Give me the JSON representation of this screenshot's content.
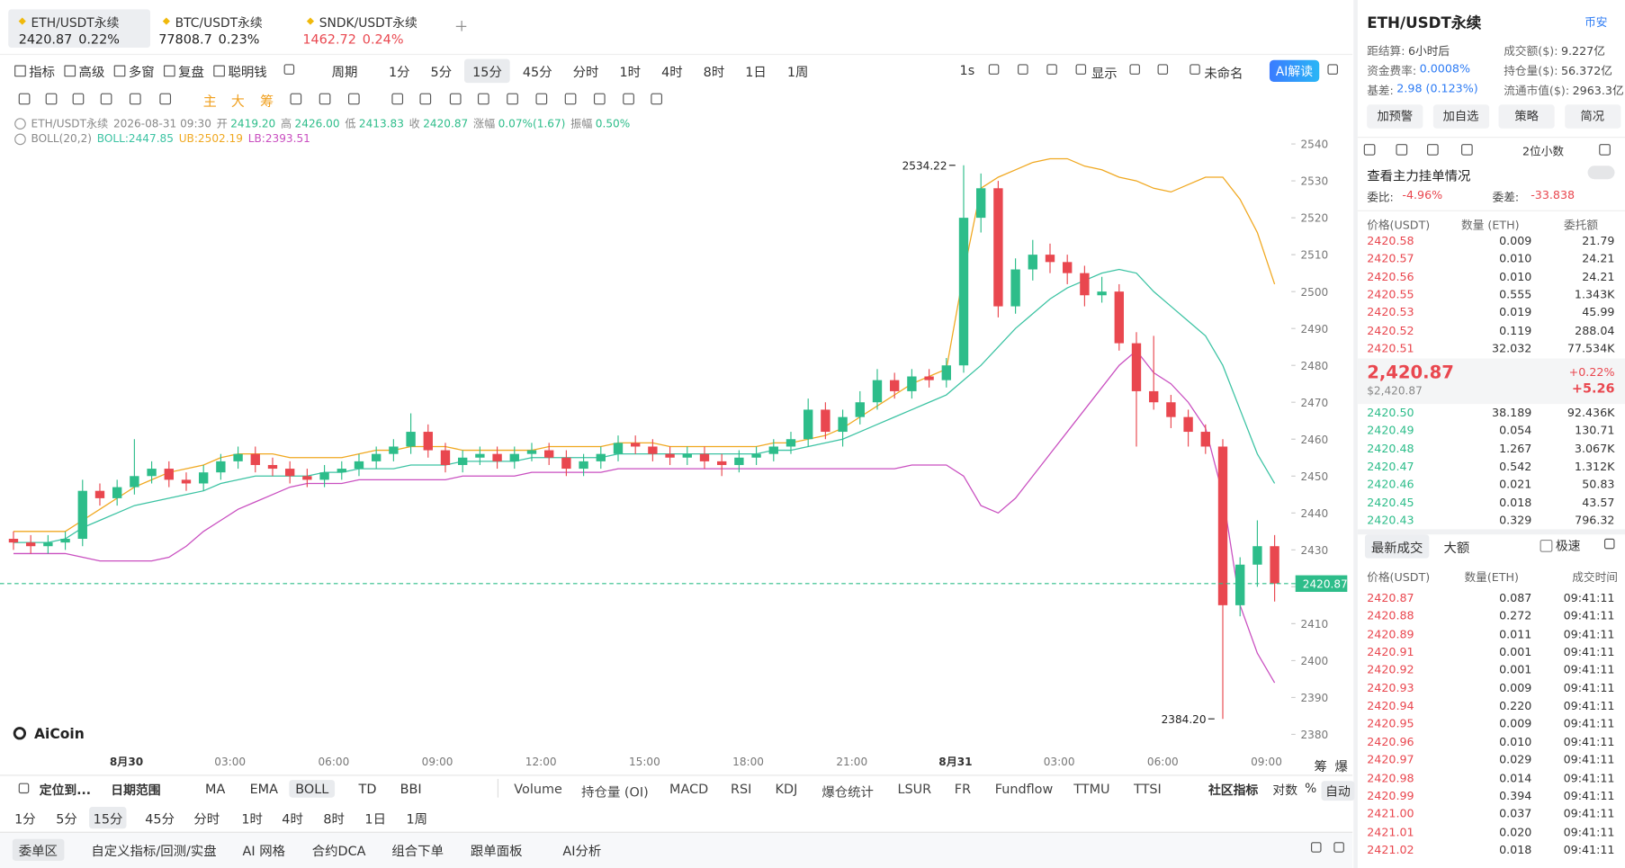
{
  "tabs": [
    {
      "name": "ETH/USDT永续",
      "price": "2420.87",
      "change": "0.22%",
      "color": "#222"
    },
    {
      "name": "BTC/USDT永续",
      "price": "77808.7",
      "change": "0.23%",
      "color": "#222"
    },
    {
      "name": "SNDK/USDT永续",
      "price": "1462.72",
      "change": "0.24%",
      "color": "#e9474f"
    }
  ],
  "toolbar": {
    "tools": [
      "指标",
      "高级",
      "多窗",
      "复盘",
      "聪明钱"
    ],
    "periods": [
      "周期",
      "1分",
      "5分",
      "15分",
      "45分",
      "分时",
      "1时",
      "4时",
      "8时",
      "1日",
      "1周"
    ],
    "right": [
      "1s",
      "显示",
      "未命名"
    ],
    "ai": "AI解读"
  },
  "drawing_tools": [
    "主",
    "大",
    "筹"
  ],
  "info": {
    "symbol": "ETH/USDT永续",
    "time": "2026-08-31 09:30",
    "fields": [
      [
        "开",
        "2419.20"
      ],
      [
        "高",
        "2426.00"
      ],
      [
        "低",
        "2413.83"
      ],
      [
        "收",
        "2420.87"
      ],
      [
        "涨幅",
        "0.07%(1.67)"
      ],
      [
        "振幅",
        "0.50%"
      ]
    ]
  },
  "boll_info": {
    "name": "BOLL(20,2)",
    "mid": "BOLL:2447.85",
    "ub": "UB:2502.19",
    "lb": "LB:2393.51"
  },
  "chart_data": {
    "type": "candlestick",
    "ylim": [
      2380,
      2540
    ],
    "yticks": [
      2380,
      2390,
      2400,
      2410,
      2420,
      2430,
      2440,
      2450,
      2460,
      2470,
      2480,
      2490,
      2500,
      2510,
      2520,
      2530,
      2540
    ],
    "grid": false,
    "x_labels": [
      "8月30",
      "03:00",
      "06:00",
      "09:00",
      "12:00",
      "15:00",
      "18:00",
      "21:00",
      "8月31",
      "03:00",
      "06:00",
      "09:00"
    ],
    "up_color": "#2dbd8a",
    "down_color": "#e9474f",
    "candles": [
      [
        2433,
        2435,
        2430,
        2432
      ],
      [
        2432,
        2434,
        2429,
        2431
      ],
      [
        2431,
        2434,
        2429,
        2432
      ],
      [
        2432,
        2435,
        2430,
        2433
      ],
      [
        2433,
        2449,
        2431,
        2446
      ],
      [
        2446,
        2448,
        2442,
        2444
      ],
      [
        2444,
        2449,
        2442,
        2447
      ],
      [
        2447,
        2460,
        2445,
        2450
      ],
      [
        2450,
        2454,
        2448,
        2452
      ],
      [
        2452,
        2454,
        2447,
        2449
      ],
      [
        2449,
        2451,
        2446,
        2448
      ],
      [
        2448,
        2453,
        2446,
        2451
      ],
      [
        2451,
        2456,
        2449,
        2454
      ],
      [
        2454,
        2458,
        2452,
        2456
      ],
      [
        2456,
        2458,
        2451,
        2453
      ],
      [
        2453,
        2455,
        2450,
        2452
      ],
      [
        2452,
        2454,
        2448,
        2450
      ],
      [
        2450,
        2452,
        2447,
        2449
      ],
      [
        2449,
        2453,
        2447,
        2451
      ],
      [
        2451,
        2454,
        2449,
        2452
      ],
      [
        2452,
        2456,
        2450,
        2454
      ],
      [
        2454,
        2458,
        2452,
        2456
      ],
      [
        2456,
        2460,
        2454,
        2458
      ],
      [
        2458,
        2467,
        2456,
        2462
      ],
      [
        2462,
        2464,
        2455,
        2457
      ],
      [
        2457,
        2459,
        2451,
        2453
      ],
      [
        2453,
        2457,
        2451,
        2455
      ],
      [
        2455,
        2458,
        2453,
        2456
      ],
      [
        2456,
        2458,
        2452,
        2454
      ],
      [
        2454,
        2458,
        2452,
        2456
      ],
      [
        2456,
        2459,
        2454,
        2457
      ],
      [
        2457,
        2459,
        2453,
        2455
      ],
      [
        2455,
        2457,
        2450,
        2452
      ],
      [
        2452,
        2456,
        2450,
        2454
      ],
      [
        2454,
        2458,
        2452,
        2456
      ],
      [
        2456,
        2461,
        2454,
        2459
      ],
      [
        2459,
        2461,
        2456,
        2458
      ],
      [
        2458,
        2460,
        2454,
        2456
      ],
      [
        2456,
        2458,
        2453,
        2455
      ],
      [
        2455,
        2458,
        2453,
        2456
      ],
      [
        2456,
        2458,
        2452,
        2454
      ],
      [
        2454,
        2456,
        2450,
        2453
      ],
      [
        2453,
        2457,
        2451,
        2455
      ],
      [
        2455,
        2458,
        2453,
        2456
      ],
      [
        2456,
        2460,
        2454,
        2458
      ],
      [
        2458,
        2462,
        2456,
        2460
      ],
      [
        2460,
        2471,
        2458,
        2468
      ],
      [
        2468,
        2470,
        2460,
        2462
      ],
      [
        2462,
        2468,
        2458,
        2466
      ],
      [
        2466,
        2473,
        2464,
        2470
      ],
      [
        2470,
        2479,
        2468,
        2476
      ],
      [
        2476,
        2478,
        2471,
        2473
      ],
      [
        2473,
        2479,
        2471,
        2477
      ],
      [
        2477,
        2479,
        2474,
        2476
      ],
      [
        2476,
        2482,
        2474,
        2480
      ],
      [
        2480,
        2534.22,
        2478,
        2520
      ],
      [
        2520,
        2532,
        2516,
        2528
      ],
      [
        2528,
        2530,
        2493,
        2496
      ],
      [
        2496,
        2509,
        2494,
        2506
      ],
      [
        2506,
        2514,
        2503,
        2510
      ],
      [
        2510,
        2513,
        2505,
        2508
      ],
      [
        2508,
        2510,
        2502,
        2505
      ],
      [
        2505,
        2507,
        2496,
        2499
      ],
      [
        2499,
        2504,
        2497,
        2500
      ],
      [
        2500,
        2502,
        2484,
        2486
      ],
      [
        2486,
        2489,
        2458,
        2473
      ],
      [
        2473,
        2488,
        2468,
        2470
      ],
      [
        2470,
        2472,
        2463,
        2466
      ],
      [
        2466,
        2468,
        2458,
        2462
      ],
      [
        2462,
        2464,
        2456,
        2458
      ],
      [
        2458,
        2460,
        2384.2,
        2415
      ],
      [
        2415,
        2428,
        2412,
        2426
      ],
      [
        2426,
        2438,
        2420,
        2431
      ],
      [
        2431,
        2434,
        2416,
        2420.87
      ]
    ],
    "series": [
      {
        "color": "#f0a820",
        "values": [
          2435,
          2435,
          2435,
          2435,
          2438,
          2441,
          2444,
          2447,
          2449,
          2451,
          2452,
          2453,
          2455,
          2456,
          2456,
          2456,
          2455,
          2455,
          2455,
          2455,
          2456,
          2457,
          2457,
          2458,
          2458,
          2458,
          2457,
          2457,
          2457,
          2457,
          2457,
          2458,
          2458,
          2458,
          2458,
          2459,
          2459,
          2459,
          2458,
          2458,
          2458,
          2458,
          2458,
          2458,
          2459,
          2459,
          2460,
          2461,
          2463,
          2466,
          2469,
          2472,
          2475,
          2477,
          2479,
          2505,
          2528,
          2531,
          2533,
          2535,
          2536,
          2536,
          2534,
          2533,
          2531,
          2530,
          2528,
          2527,
          2529,
          2531,
          2531,
          2525,
          2516,
          2502
        ]
      },
      {
        "color": "#3cc3a3",
        "values": [
          2432,
          2432,
          2432,
          2433,
          2436,
          2438,
          2440,
          2442,
          2443,
          2444,
          2445,
          2446,
          2448,
          2449,
          2450,
          2450,
          2450,
          2450,
          2451,
          2451,
          2452,
          2452,
          2452,
          2453,
          2453,
          2453,
          2454,
          2454,
          2454,
          2454,
          2455,
          2455,
          2455,
          2455,
          2455,
          2456,
          2456,
          2456,
          2456,
          2456,
          2456,
          2456,
          2456,
          2456,
          2457,
          2457,
          2458,
          2459,
          2460,
          2462,
          2464,
          2466,
          2468,
          2470,
          2472,
          2476,
          2480,
          2485,
          2490,
          2494,
          2498,
          2501,
          2503,
          2505,
          2506,
          2505,
          2500,
          2496,
          2492,
          2488,
          2480,
          2468,
          2456,
          2448
        ]
      },
      {
        "color": "#c94fc0",
        "values": [
          2429,
          2429,
          2429,
          2429,
          2428,
          2427,
          2427,
          2427,
          2427,
          2428,
          2431,
          2435,
          2438,
          2441,
          2443,
          2445,
          2447,
          2448,
          2448,
          2448,
          2449,
          2449,
          2449,
          2449,
          2449,
          2449,
          2450,
          2450,
          2450,
          2450,
          2451,
          2451,
          2451,
          2451,
          2451,
          2452,
          2452,
          2452,
          2452,
          2452,
          2452,
          2452,
          2452,
          2452,
          2452,
          2452,
          2452,
          2452,
          2452,
          2452,
          2452,
          2452,
          2453,
          2453,
          2453,
          2450,
          2442,
          2440,
          2444,
          2450,
          2456,
          2462,
          2468,
          2474,
          2480,
          2484,
          2478,
          2475,
          2470,
          2463,
          2445,
          2415,
          2402,
          2394
        ]
      }
    ],
    "annotations": [
      {
        "label": "2534.22",
        "value": 2534.22
      },
      {
        "label": "2384.20",
        "value": 2384.2
      }
    ],
    "last_price": {
      "label": "2420.87",
      "value": 2420.87
    },
    "watermark": "AiCoin"
  },
  "axis_side": [
    "筹",
    "爆"
  ],
  "bottom": {
    "locate": "定位到...",
    "range": "日期范围",
    "main": [
      "MA",
      "EMA",
      "BOLL",
      "TD",
      "BBI"
    ],
    "sub": [
      "Volume",
      "持仓量 (OI)",
      "MACD",
      "RSI",
      "KDJ",
      "爆仓统计",
      "LSUR",
      "FR",
      "Fundflow",
      "TTMU",
      "TTSI"
    ],
    "community": "社区指标",
    "right": [
      "对数",
      "%",
      "自动"
    ],
    "periods": [
      "1分",
      "5分",
      "15分",
      "45分",
      "分时",
      "1时",
      "4时",
      "8时",
      "1日",
      "1周"
    ],
    "footer": [
      "委单区",
      "自定义指标/回测/实盘",
      "AI 网格",
      "合约DCA",
      "组合下单",
      "跟单面板",
      "AI分析"
    ]
  },
  "panel": {
    "title": "ETH/USDT永续",
    "exchange": "币安",
    "stats": [
      [
        "距结算:",
        "6小时后"
      ],
      [
        "成交额($):",
        "9.227亿"
      ],
      [
        "资金费率:",
        "0.0008%"
      ],
      [
        "持仓量($):",
        "56.372亿"
      ],
      [
        "基差:",
        "2.98 (0.123%)"
      ],
      [
        "流通市值($):",
        "2963.3亿"
      ]
    ],
    "buttons": [
      "加预警",
      "加自选",
      "策略",
      "简况"
    ],
    "decimals": "2位小数",
    "depth_link": "查看主力挂单情况",
    "ratio_label": "委比:",
    "ratio": "-4.96%",
    "diff_label": "委差:",
    "diff": "-33.838",
    "book_headers": [
      "价格(USDT)",
      "数量 (ETH)",
      "委托额"
    ],
    "asks": [
      [
        "2420.58",
        "0.009",
        "21.79"
      ],
      [
        "2420.57",
        "0.010",
        "24.21"
      ],
      [
        "2420.56",
        "0.010",
        "24.21"
      ],
      [
        "2420.55",
        "0.555",
        "1.343K"
      ],
      [
        "2420.53",
        "0.019",
        "45.99"
      ],
      [
        "2420.52",
        "0.119",
        "288.04"
      ],
      [
        "2420.51",
        "32.032",
        "77.534K"
      ]
    ],
    "mid": {
      "price": "2,420.87",
      "usd": "$2,420.87",
      "pct": "+0.22%",
      "diff": "+5.26"
    },
    "bids": [
      [
        "2420.50",
        "38.189",
        "92.436K"
      ],
      [
        "2420.49",
        "0.054",
        "130.71"
      ],
      [
        "2420.48",
        "1.267",
        "3.067K"
      ],
      [
        "2420.47",
        "0.542",
        "1.312K"
      ],
      [
        "2420.46",
        "0.021",
        "50.83"
      ],
      [
        "2420.45",
        "0.018",
        "43.57"
      ],
      [
        "2420.43",
        "0.329",
        "796.32"
      ]
    ],
    "trade_tabs": [
      "最新成交",
      "大额"
    ],
    "fast": "极速",
    "trade_headers": [
      "价格(USDT)",
      "数量(ETH)",
      "成交时间"
    ],
    "trades": [
      [
        "2420.87",
        "0.087",
        "09:41:11"
      ],
      [
        "2420.88",
        "0.272",
        "09:41:11"
      ],
      [
        "2420.89",
        "0.011",
        "09:41:11"
      ],
      [
        "2420.91",
        "0.001",
        "09:41:11"
      ],
      [
        "2420.92",
        "0.001",
        "09:41:11"
      ],
      [
        "2420.93",
        "0.009",
        "09:41:11"
      ],
      [
        "2420.94",
        "0.220",
        "09:41:11"
      ],
      [
        "2420.95",
        "0.009",
        "09:41:11"
      ],
      [
        "2420.96",
        "0.010",
        "09:41:11"
      ],
      [
        "2420.97",
        "0.029",
        "09:41:11"
      ],
      [
        "2420.98",
        "0.014",
        "09:41:11"
      ],
      [
        "2420.99",
        "0.394",
        "09:41:11"
      ],
      [
        "2421.00",
        "0.037",
        "09:41:11"
      ],
      [
        "2421.01",
        "0.020",
        "09:41:11"
      ],
      [
        "2421.02",
        "0.018",
        "09:41:11"
      ]
    ]
  }
}
